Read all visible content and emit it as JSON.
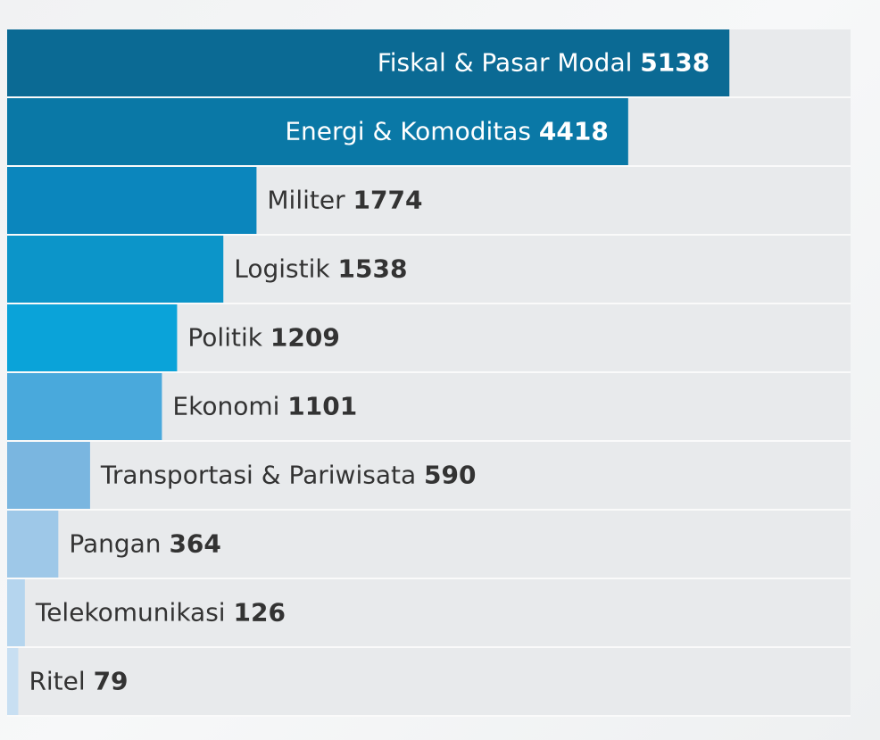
{
  "chart_data": {
    "type": "bar",
    "categories": [
      "Fiskal & Pasar Modal",
      "Energi & Komoditas",
      "Militer",
      "Logistik",
      "Politik",
      "Ekonomi",
      "Transportasi & Pariwisata",
      "Pangan",
      "Telekomunikasi",
      "Ritel"
    ],
    "values": [
      5138,
      4418,
      1774,
      1538,
      1209,
      1101,
      590,
      364,
      126,
      79
    ],
    "colors": [
      "#0b6a94",
      "#0a78a6",
      "#0b86bd",
      "#0c95c9",
      "#0aa3d9",
      "#49a9dc",
      "#7ab6e0",
      "#9ec8e8",
      "#b5d5ee",
      "#c8dff2"
    ],
    "xlim": [
      0,
      6000
    ]
  }
}
